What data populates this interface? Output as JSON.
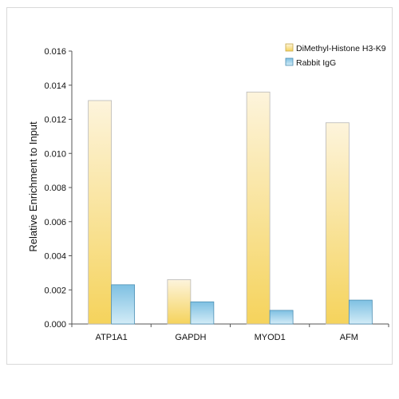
{
  "chart_data": {
    "type": "bar",
    "title": "",
    "xlabel": "",
    "ylabel": "Relative Enrichment to Input",
    "ylim": [
      0,
      0.016
    ],
    "yticks": [
      "0.000",
      "0.002",
      "0.004",
      "0.006",
      "0.008",
      "0.010",
      "0.012",
      "0.014",
      "0.016"
    ],
    "categories": [
      "ATP1A1",
      "GAPDH",
      "MYOD1",
      "AFM"
    ],
    "legend_position": "top-right",
    "grid": false,
    "series": [
      {
        "name": "DiMethyl-Histone H3-K9",
        "values": [
          0.0131,
          0.0026,
          0.0136,
          0.0118
        ],
        "color": "#f5d56a"
      },
      {
        "name": "Rabbit IgG",
        "values": [
          0.0023,
          0.0013,
          0.0008,
          0.0014
        ],
        "color": "#7fbfe0"
      }
    ]
  }
}
